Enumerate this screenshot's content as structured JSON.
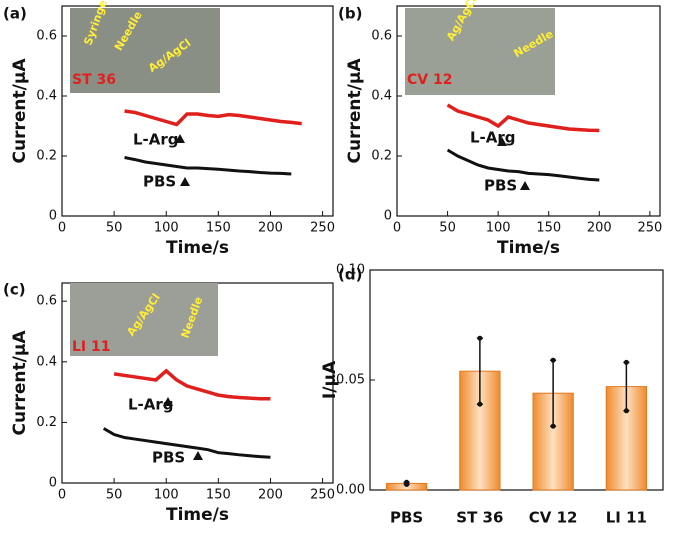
{
  "chart_data": [
    {
      "type": "line",
      "panel_label": "(a)",
      "xlabel": "Time/s",
      "ylabel": "Current/μA",
      "xlim": [
        0,
        260
      ],
      "xticks": [
        0,
        50,
        100,
        150,
        200,
        250
      ],
      "ylim": [
        0,
        0.7
      ],
      "yticks": [
        0,
        0.2,
        0.4,
        0.6
      ],
      "inset_labels": [
        "Syringe",
        "Needle",
        "Ag/AgCl",
        "ST 36"
      ],
      "x": [
        60,
        70,
        80,
        90,
        100,
        110,
        120,
        130,
        140,
        150,
        160,
        170,
        180,
        190,
        200,
        210,
        220,
        230
      ],
      "series": [
        {
          "name": "L-Arg",
          "color": "#e0201c",
          "values": [
            0.35,
            0.345,
            0.335,
            0.325,
            0.315,
            0.305,
            0.34,
            0.34,
            0.335,
            0.332,
            0.338,
            0.335,
            0.33,
            0.325,
            0.32,
            0.315,
            0.312,
            0.308
          ]
        },
        {
          "name": "PBS",
          "color": "#111111",
          "values": [
            0.195,
            0.188,
            0.18,
            0.175,
            0.17,
            0.165,
            0.16,
            0.16,
            0.158,
            0.156,
            0.153,
            0.15,
            0.148,
            0.145,
            0.143,
            0.142,
            0.14,
            null
          ]
        }
      ]
    },
    {
      "type": "line",
      "panel_label": "(b)",
      "xlabel": "Time/s",
      "ylabel": "Current/μA",
      "xlim": [
        0,
        260
      ],
      "xticks": [
        0,
        50,
        100,
        150,
        200,
        250
      ],
      "ylim": [
        0,
        0.7
      ],
      "yticks": [
        0,
        0.2,
        0.4,
        0.6
      ],
      "inset_labels": [
        "Ag/AgCl",
        "Needle",
        "CV 12"
      ],
      "x": [
        50,
        60,
        70,
        80,
        90,
        100,
        110,
        120,
        130,
        140,
        150,
        160,
        170,
        180,
        190,
        200
      ],
      "series": [
        {
          "name": "L-Arg",
          "color": "#e0201c",
          "values": [
            0.37,
            0.35,
            0.34,
            0.33,
            0.32,
            0.3,
            0.33,
            0.32,
            0.31,
            0.305,
            0.3,
            0.295,
            0.29,
            0.288,
            0.286,
            0.285
          ]
        },
        {
          "name": "PBS",
          "color": "#111111",
          "values": [
            0.22,
            0.2,
            0.185,
            0.17,
            0.16,
            0.155,
            0.15,
            0.148,
            0.142,
            0.14,
            0.138,
            0.134,
            0.13,
            0.126,
            0.122,
            0.12
          ]
        }
      ]
    },
    {
      "type": "line",
      "panel_label": "(c)",
      "xlabel": "Time/s",
      "ylabel": "Current/μA",
      "xlim": [
        0,
        260
      ],
      "xticks": [
        0,
        50,
        100,
        150,
        200,
        250
      ],
      "ylim": [
        0,
        0.66
      ],
      "yticks": [
        0,
        0.2,
        0.4,
        0.6
      ],
      "inset_labels": [
        "Ag/AgCl",
        "Needle",
        "LI 11"
      ],
      "x": [
        40,
        50,
        60,
        70,
        80,
        90,
        100,
        110,
        120,
        130,
        140,
        150,
        160,
        170,
        180,
        190,
        200
      ],
      "series": [
        {
          "name": "L-Arg",
          "color": "#e0201c",
          "values": [
            null,
            0.36,
            0.355,
            0.35,
            0.345,
            0.34,
            0.37,
            0.34,
            0.32,
            0.31,
            0.3,
            0.29,
            0.285,
            0.282,
            0.28,
            0.278,
            0.278
          ]
        },
        {
          "name": "PBS",
          "color": "#111111",
          "values": [
            0.18,
            0.16,
            0.15,
            0.145,
            0.14,
            0.135,
            0.13,
            0.125,
            0.12,
            0.115,
            0.11,
            0.1,
            0.097,
            0.093,
            0.09,
            0.087,
            0.085
          ]
        }
      ]
    },
    {
      "type": "bar",
      "panel_label": "(d)",
      "ylabel": "I/μA",
      "color": "#f5a45a",
      "categories": [
        "PBS",
        "ST 36",
        "CV 12",
        "LI 11"
      ],
      "values": [
        0.003,
        0.054,
        0.044,
        0.047
      ],
      "errors": [
        0.0005,
        0.015,
        0.015,
        0.011
      ],
      "ylim": [
        0,
        0.1
      ],
      "yticks": [
        {
          "value": 0,
          "label": "0.00"
        },
        {
          "value": 0.05,
          "label": "0.05"
        },
        {
          "value": 0.1,
          "label": "0.10"
        }
      ]
    }
  ]
}
